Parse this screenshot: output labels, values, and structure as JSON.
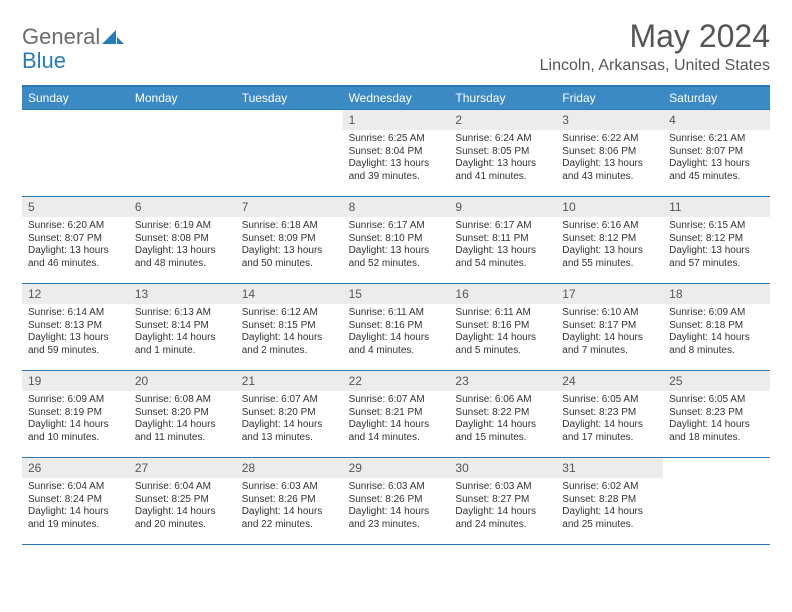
{
  "brand": {
    "word1": "General",
    "word2": "Blue"
  },
  "title": {
    "month": "May 2024",
    "location": "Lincoln, Arkansas, United States"
  },
  "colors": {
    "accent": "#2a7ab8",
    "header_bg": "#3b8ac4",
    "daynum_bg": "#ececec",
    "text": "#333333",
    "muted": "#555555",
    "logo_gray": "#6c6c6c"
  },
  "weekdays": [
    "Sunday",
    "Monday",
    "Tuesday",
    "Wednesday",
    "Thursday",
    "Friday",
    "Saturday"
  ],
  "weeks": [
    [
      null,
      null,
      null,
      {
        "n": "1",
        "sunrise": "Sunrise: 6:25 AM",
        "sunset": "Sunset: 8:04 PM",
        "daylight": "Daylight: 13 hours and 39 minutes."
      },
      {
        "n": "2",
        "sunrise": "Sunrise: 6:24 AM",
        "sunset": "Sunset: 8:05 PM",
        "daylight": "Daylight: 13 hours and 41 minutes."
      },
      {
        "n": "3",
        "sunrise": "Sunrise: 6:22 AM",
        "sunset": "Sunset: 8:06 PM",
        "daylight": "Daylight: 13 hours and 43 minutes."
      },
      {
        "n": "4",
        "sunrise": "Sunrise: 6:21 AM",
        "sunset": "Sunset: 8:07 PM",
        "daylight": "Daylight: 13 hours and 45 minutes."
      }
    ],
    [
      {
        "n": "5",
        "sunrise": "Sunrise: 6:20 AM",
        "sunset": "Sunset: 8:07 PM",
        "daylight": "Daylight: 13 hours and 46 minutes."
      },
      {
        "n": "6",
        "sunrise": "Sunrise: 6:19 AM",
        "sunset": "Sunset: 8:08 PM",
        "daylight": "Daylight: 13 hours and 48 minutes."
      },
      {
        "n": "7",
        "sunrise": "Sunrise: 6:18 AM",
        "sunset": "Sunset: 8:09 PM",
        "daylight": "Daylight: 13 hours and 50 minutes."
      },
      {
        "n": "8",
        "sunrise": "Sunrise: 6:17 AM",
        "sunset": "Sunset: 8:10 PM",
        "daylight": "Daylight: 13 hours and 52 minutes."
      },
      {
        "n": "9",
        "sunrise": "Sunrise: 6:17 AM",
        "sunset": "Sunset: 8:11 PM",
        "daylight": "Daylight: 13 hours and 54 minutes."
      },
      {
        "n": "10",
        "sunrise": "Sunrise: 6:16 AM",
        "sunset": "Sunset: 8:12 PM",
        "daylight": "Daylight: 13 hours and 55 minutes."
      },
      {
        "n": "11",
        "sunrise": "Sunrise: 6:15 AM",
        "sunset": "Sunset: 8:12 PM",
        "daylight": "Daylight: 13 hours and 57 minutes."
      }
    ],
    [
      {
        "n": "12",
        "sunrise": "Sunrise: 6:14 AM",
        "sunset": "Sunset: 8:13 PM",
        "daylight": "Daylight: 13 hours and 59 minutes."
      },
      {
        "n": "13",
        "sunrise": "Sunrise: 6:13 AM",
        "sunset": "Sunset: 8:14 PM",
        "daylight": "Daylight: 14 hours and 1 minute."
      },
      {
        "n": "14",
        "sunrise": "Sunrise: 6:12 AM",
        "sunset": "Sunset: 8:15 PM",
        "daylight": "Daylight: 14 hours and 2 minutes."
      },
      {
        "n": "15",
        "sunrise": "Sunrise: 6:11 AM",
        "sunset": "Sunset: 8:16 PM",
        "daylight": "Daylight: 14 hours and 4 minutes."
      },
      {
        "n": "16",
        "sunrise": "Sunrise: 6:11 AM",
        "sunset": "Sunset: 8:16 PM",
        "daylight": "Daylight: 14 hours and 5 minutes."
      },
      {
        "n": "17",
        "sunrise": "Sunrise: 6:10 AM",
        "sunset": "Sunset: 8:17 PM",
        "daylight": "Daylight: 14 hours and 7 minutes."
      },
      {
        "n": "18",
        "sunrise": "Sunrise: 6:09 AM",
        "sunset": "Sunset: 8:18 PM",
        "daylight": "Daylight: 14 hours and 8 minutes."
      }
    ],
    [
      {
        "n": "19",
        "sunrise": "Sunrise: 6:09 AM",
        "sunset": "Sunset: 8:19 PM",
        "daylight": "Daylight: 14 hours and 10 minutes."
      },
      {
        "n": "20",
        "sunrise": "Sunrise: 6:08 AM",
        "sunset": "Sunset: 8:20 PM",
        "daylight": "Daylight: 14 hours and 11 minutes."
      },
      {
        "n": "21",
        "sunrise": "Sunrise: 6:07 AM",
        "sunset": "Sunset: 8:20 PM",
        "daylight": "Daylight: 14 hours and 13 minutes."
      },
      {
        "n": "22",
        "sunrise": "Sunrise: 6:07 AM",
        "sunset": "Sunset: 8:21 PM",
        "daylight": "Daylight: 14 hours and 14 minutes."
      },
      {
        "n": "23",
        "sunrise": "Sunrise: 6:06 AM",
        "sunset": "Sunset: 8:22 PM",
        "daylight": "Daylight: 14 hours and 15 minutes."
      },
      {
        "n": "24",
        "sunrise": "Sunrise: 6:05 AM",
        "sunset": "Sunset: 8:23 PM",
        "daylight": "Daylight: 14 hours and 17 minutes."
      },
      {
        "n": "25",
        "sunrise": "Sunrise: 6:05 AM",
        "sunset": "Sunset: 8:23 PM",
        "daylight": "Daylight: 14 hours and 18 minutes."
      }
    ],
    [
      {
        "n": "26",
        "sunrise": "Sunrise: 6:04 AM",
        "sunset": "Sunset: 8:24 PM",
        "daylight": "Daylight: 14 hours and 19 minutes."
      },
      {
        "n": "27",
        "sunrise": "Sunrise: 6:04 AM",
        "sunset": "Sunset: 8:25 PM",
        "daylight": "Daylight: 14 hours and 20 minutes."
      },
      {
        "n": "28",
        "sunrise": "Sunrise: 6:03 AM",
        "sunset": "Sunset: 8:26 PM",
        "daylight": "Daylight: 14 hours and 22 minutes."
      },
      {
        "n": "29",
        "sunrise": "Sunrise: 6:03 AM",
        "sunset": "Sunset: 8:26 PM",
        "daylight": "Daylight: 14 hours and 23 minutes."
      },
      {
        "n": "30",
        "sunrise": "Sunrise: 6:03 AM",
        "sunset": "Sunset: 8:27 PM",
        "daylight": "Daylight: 14 hours and 24 minutes."
      },
      {
        "n": "31",
        "sunrise": "Sunrise: 6:02 AM",
        "sunset": "Sunset: 8:28 PM",
        "daylight": "Daylight: 14 hours and 25 minutes."
      },
      null
    ]
  ]
}
